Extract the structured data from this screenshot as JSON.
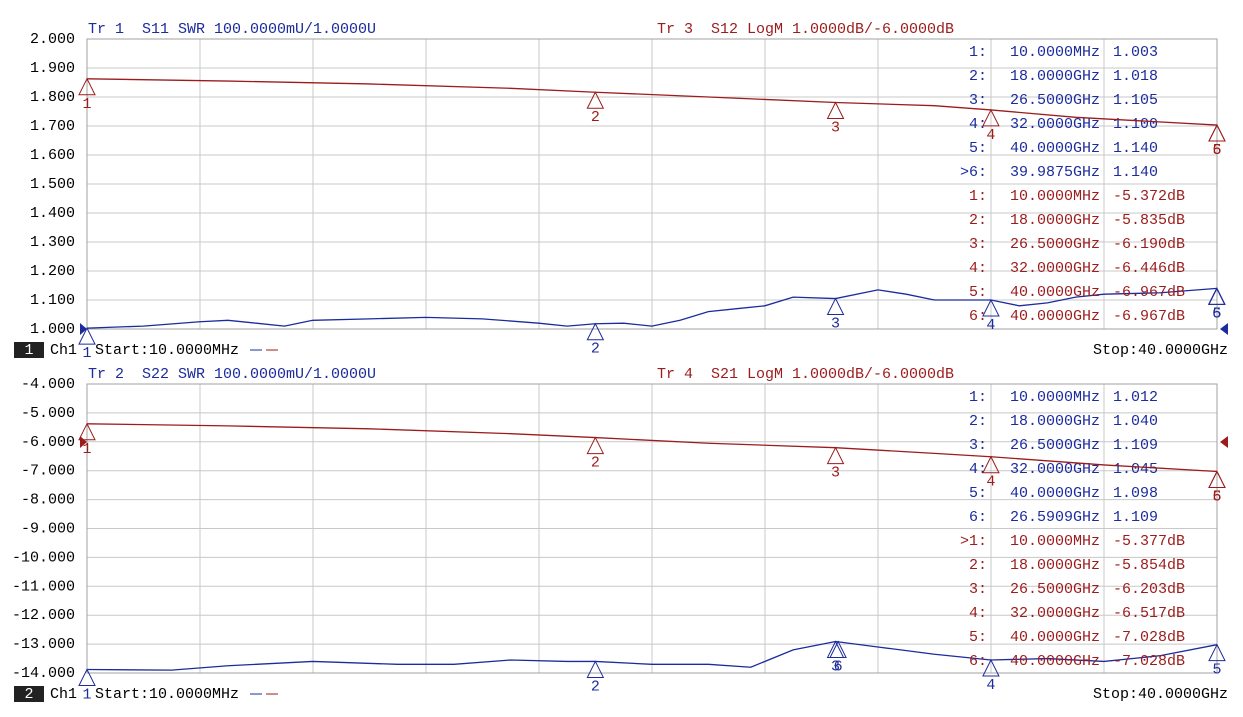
{
  "chart_data": [
    {
      "type": "line",
      "xlim": [
        0.01,
        40
      ],
      "ylim": [
        1,
        2
      ],
      "y2lim": [
        -14,
        -4
      ],
      "grid": true,
      "yticks": [
        {
          "value": 1,
          "label": "1.000"
        },
        {
          "value": 1.1,
          "label": "1.100"
        },
        {
          "value": 1.2,
          "label": "1.200"
        },
        {
          "value": 1.3,
          "label": "1.300"
        },
        {
          "value": 1.4,
          "label": "1.400"
        },
        {
          "value": 1.5,
          "label": "1.500"
        },
        {
          "value": 1.6,
          "label": "1.600"
        },
        {
          "value": 1.7,
          "label": "1.700"
        },
        {
          "value": 1.8,
          "label": "1.800"
        },
        {
          "value": 1.9,
          "label": "1.900"
        },
        {
          "value": 2,
          "label": "2.000"
        }
      ],
      "channel": "1",
      "channel_label": "Ch1",
      "start": "Start:10.0000MHz",
      "stop": "Stop:40.0000GHz",
      "series": [
        {
          "name": "Tr 1  S11 SWR 100.0000mU/1.0000U",
          "color": "#1c2c9c",
          "x": [
            0.01,
            2,
            4,
            5,
            6,
            7,
            8,
            10,
            12,
            14,
            16,
            17,
            18,
            19,
            20,
            21,
            22,
            23,
            24,
            25,
            26.5,
            28,
            29,
            30,
            31,
            32,
            33,
            34,
            35,
            36,
            38,
            40
          ],
          "values": [
            1.003,
            1.01,
            1.025,
            1.03,
            1.02,
            1.01,
            1.03,
            1.035,
            1.04,
            1.035,
            1.02,
            1.01,
            1.018,
            1.02,
            1.01,
            1.03,
            1.06,
            1.07,
            1.08,
            1.11,
            1.105,
            1.135,
            1.12,
            1.1,
            1.1,
            1.1,
            1.08,
            1.09,
            1.11,
            1.12,
            1.125,
            1.14
          ],
          "markers": {
            "labels": [
              "1",
              "2",
              "3",
              "4",
              "5",
              "6"
            ],
            "x": [
              0.01,
              18,
              26.5,
              32,
              40,
              39.9875
            ],
            "values": [
              1.003,
              1.018,
              1.105,
              1.1,
              1.14,
              1.14
            ]
          },
          "marker_table": [
            [
              "1:",
              "10.0000MHz",
              "1.003"
            ],
            [
              "2:",
              "18.0000GHz",
              "1.018"
            ],
            [
              "3:",
              "26.5000GHz",
              "1.105"
            ],
            [
              "4:",
              "32.0000GHz",
              "1.100"
            ],
            [
              "5:",
              "40.0000GHz",
              "1.140"
            ],
            [
              ">6:",
              "39.9875GHz",
              "1.140"
            ]
          ]
        },
        {
          "name": "Tr 3  S12 LogM 1.0000dB/-6.0000dB",
          "color": "#9c1c1c",
          "axis": "y2",
          "x": [
            0.01,
            5,
            10,
            15,
            18,
            22,
            26.5,
            30,
            32,
            35,
            40
          ],
          "values": [
            -5.372,
            -5.45,
            -5.55,
            -5.7,
            -5.835,
            -6.0,
            -6.19,
            -6.3,
            -6.446,
            -6.7,
            -6.967
          ],
          "markers": {
            "labels": [
              "1",
              "2",
              "3",
              "4",
              "5",
              "6"
            ],
            "x": [
              0.01,
              18,
              26.5,
              32,
              40,
              40
            ],
            "values": [
              -5.372,
              -5.835,
              -6.19,
              -6.446,
              -6.967,
              -6.967
            ]
          },
          "marker_table": [
            [
              "1:",
              "10.0000MHz",
              "-5.372dB"
            ],
            [
              "2:",
              "18.0000GHz",
              "-5.835dB"
            ],
            [
              "3:",
              "26.5000GHz",
              "-6.190dB"
            ],
            [
              "4:",
              "32.0000GHz",
              "-6.446dB"
            ],
            [
              "5:",
              "40.0000GHz",
              "-6.967dB"
            ],
            [
              "6:",
              "40.0000GHz",
              "-6.967dB"
            ]
          ]
        }
      ]
    },
    {
      "type": "line",
      "xlim": [
        0.01,
        40
      ],
      "ylim": [
        -14,
        -4
      ],
      "y2lim": [
        1,
        2
      ],
      "grid": true,
      "yticks": [
        {
          "value": -14,
          "label": "-14.000"
        },
        {
          "value": -13,
          "label": "-13.000"
        },
        {
          "value": -12,
          "label": "-12.000"
        },
        {
          "value": -11,
          "label": "-11.000"
        },
        {
          "value": -10,
          "label": "-10.000"
        },
        {
          "value": -9,
          "label": "-9.000"
        },
        {
          "value": -8,
          "label": "-8.000"
        },
        {
          "value": -7,
          "label": "-7.000"
        },
        {
          "value": -6,
          "label": "-6.000"
        },
        {
          "value": -5,
          "label": "-5.000"
        },
        {
          "value": -4,
          "label": "-4.000"
        }
      ],
      "channel": "2",
      "channel_label": "Ch1",
      "start": "Start:10.0000MHz",
      "stop": "Stop:40.0000GHz",
      "series": [
        {
          "name": "Tr 2  S22 SWR 100.0000mU/1.0000U",
          "color": "#1c2c9c",
          "axis": "y2",
          "x": [
            0.01,
            3,
            5,
            8,
            11,
            13,
            15,
            17,
            18,
            20,
            22,
            23.5,
            25,
            26.5,
            28,
            30,
            32,
            34,
            36,
            38,
            40
          ],
          "values": [
            1.012,
            1.01,
            1.025,
            1.04,
            1.03,
            1.03,
            1.045,
            1.04,
            1.04,
            1.03,
            1.03,
            1.02,
            1.08,
            1.109,
            1.09,
            1.065,
            1.045,
            1.05,
            1.04,
            1.06,
            1.098
          ],
          "markers": {
            "labels": [
              "1",
              "2",
              "3",
              "4",
              "5",
              "6"
            ],
            "x": [
              0.01,
              18,
              26.5,
              32,
              40,
              26.5909
            ],
            "values": [
              1.012,
              1.04,
              1.109,
              1.045,
              1.098,
              1.109
            ]
          },
          "marker_table": [
            [
              "1:",
              "10.0000MHz",
              "1.012"
            ],
            [
              "2:",
              "18.0000GHz",
              "1.040"
            ],
            [
              "3:",
              "26.5000GHz",
              "1.109"
            ],
            [
              "4:",
              "32.0000GHz",
              "1.045"
            ],
            [
              "5:",
              "40.0000GHz",
              "1.098"
            ],
            [
              "6:",
              "26.5909GHz",
              "1.109"
            ]
          ]
        },
        {
          "name": "Tr 4  S21 LogM 1.0000dB/-6.0000dB",
          "color": "#9c1c1c",
          "x": [
            0.01,
            5,
            10,
            15,
            18,
            22,
            26.5,
            30,
            32,
            36,
            40
          ],
          "values": [
            -5.377,
            -5.45,
            -5.55,
            -5.72,
            -5.854,
            -6.05,
            -6.203,
            -6.4,
            -6.517,
            -6.8,
            -7.028
          ],
          "markers": {
            "labels": [
              "1",
              "2",
              "3",
              "4",
              "5",
              "6"
            ],
            "x": [
              0.01,
              18,
              26.5,
              32,
              40,
              40
            ],
            "values": [
              -5.377,
              -5.854,
              -6.203,
              -6.517,
              -7.028,
              -7.028
            ]
          },
          "marker_table": [
            [
              ">1:",
              "10.0000MHz",
              "-5.377dB"
            ],
            [
              "2:",
              "18.0000GHz",
              "-5.854dB"
            ],
            [
              "3:",
              "26.5000GHz",
              "-6.203dB"
            ],
            [
              "4:",
              "32.0000GHz",
              "-6.517dB"
            ],
            [
              "5:",
              "40.0000GHz",
              "-7.028dB"
            ],
            [
              "6:",
              "40.0000GHz",
              "-7.028dB"
            ]
          ]
        }
      ]
    }
  ]
}
